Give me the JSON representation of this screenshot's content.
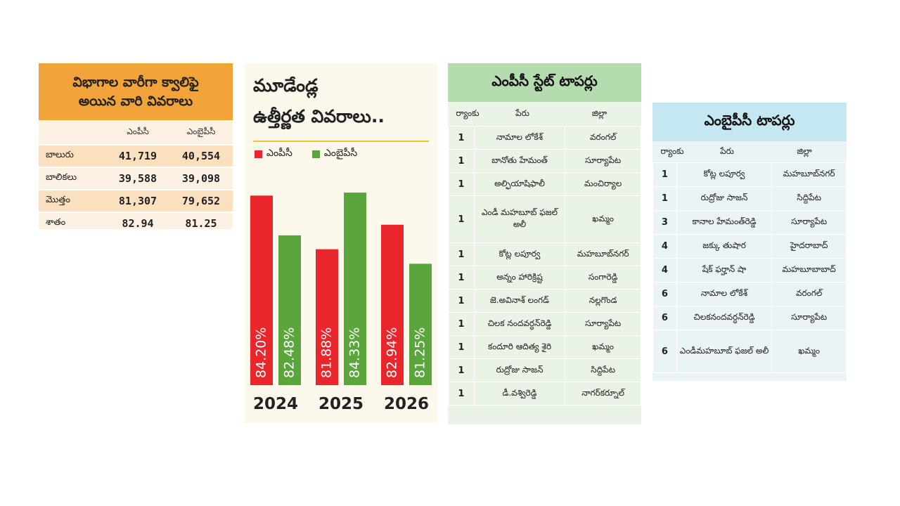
{
  "qualified": {
    "title_line1": "విభాగాల వారీగా క్వాలిఫై",
    "title_line2": "అయిన వారి వివరాలు",
    "col_headers": [
      "",
      "ఎంపీసీ",
      "ఎంబైపీసీ"
    ],
    "rows": [
      {
        "label": "బాలురు",
        "mpc": "41,719",
        "bipc": "40,554"
      },
      {
        "label": "బాలికలు",
        "mpc": "39,588",
        "bipc": "39,098"
      },
      {
        "label": "మొత్తం",
        "mpc": "81,307",
        "bipc": "79,652"
      },
      {
        "label": "శాతం",
        "mpc": "82.94",
        "bipc": "81.25"
      }
    ]
  },
  "chart_data": {
    "type": "bar",
    "title_line1": "మూడేండ్ల",
    "title_line2": "ఉత్తీర్ణత వివరాలు..",
    "categories": [
      "2024",
      "2025",
      "2026"
    ],
    "series": [
      {
        "name": "ఎంపీసీ",
        "color": "#e8262c",
        "values": [
          84.2,
          81.88,
          82.94
        ],
        "labels": [
          "84.20%",
          "81.88%",
          "82.94%"
        ]
      },
      {
        "name": "ఎంబైపీసీ",
        "color": "#5aa63c",
        "values": [
          82.48,
          84.33,
          81.25
        ],
        "labels": [
          "82.48%",
          "84.33%",
          "81.25%"
        ]
      }
    ],
    "ylabel": "",
    "grid": false
  },
  "mpc_toppers": {
    "title": "ఎంపీసీ స్టేట్ టాపర్లు",
    "col_headers": [
      "ర్యాంకు",
      "పేరు",
      "జిల్లా"
    ],
    "rows": [
      {
        "rank": "1",
        "name": "నామాల లోకేశ్",
        "district": "వరంగల్"
      },
      {
        "rank": "1",
        "name": "బానోతు హేమంత్",
        "district": "సూర్యాపేట"
      },
      {
        "rank": "1",
        "name": "అల్ఫియాషిఫాలీ",
        "district": "మంచిర్యాల"
      },
      {
        "rank": "1",
        "name": "ఎండీ మహబూబ్ ఫజల్ అలీ",
        "district": "ఖమ్మం",
        "tall": true
      },
      {
        "rank": "1",
        "name": "కోట్ల లపూర్వ",
        "district": "మహబూబ్‌నగర్"
      },
      {
        "rank": "1",
        "name": "అన్నం హారిక్రిష్ట",
        "district": "సంగారెడ్డి"
      },
      {
        "rank": "1",
        "name": "జె.అవినాశ్ లంగడ్",
        "district": "నల్లగొండ"
      },
      {
        "rank": "1",
        "name": "చిలక నందవర్ధన్‌రెడ్డి",
        "district": "సూర్యాపేట"
      },
      {
        "rank": "1",
        "name": "కందూరి ఆదిత్య శైరి",
        "district": "ఖమ్మం"
      },
      {
        "rank": "1",
        "name": "రుద్రోజు సాజన్",
        "district": "సిద్దిపేట"
      },
      {
        "rank": "1",
        "name": "డీ.వశ్విరెడ్డి",
        "district": "నాగర్‌కర్నూల్"
      }
    ]
  },
  "bipc_toppers": {
    "title": "ఎంబైపీసీ టాపర్లు",
    "col_headers": [
      "ర్యాంకు",
      "పేరు",
      "జిల్లా"
    ],
    "rows": [
      {
        "rank": "1",
        "name": "కోట్ల లపూర్వ",
        "district": "మహబూబ్‌నగర్"
      },
      {
        "rank": "1",
        "name": "రుద్రోజు సాజన్",
        "district": "సిద్దిపేట"
      },
      {
        "rank": "3",
        "name": "కానాల హేమంత్‌రెడ్డి",
        "district": "సూర్యాపేట"
      },
      {
        "rank": "4",
        "name": "జక్కు తుషార",
        "district": "హైదరాబాద్"
      },
      {
        "rank": "4",
        "name": "షేక్ ఫర్హాన్ షా",
        "district": "మహబూబాబాద్"
      },
      {
        "rank": "6",
        "name": "నామాల లోకేశ్",
        "district": "వరంగల్"
      },
      {
        "rank": "6",
        "name": "చిలకనందవర్ధన్‌రెడ్డి",
        "district": "సూర్యాపేట"
      },
      {
        "rank": "6",
        "name": "ఎండీమహబూబ్ ఫజల్ అలీ",
        "district": "ఖమ్మం",
        "tall": true
      }
    ]
  }
}
